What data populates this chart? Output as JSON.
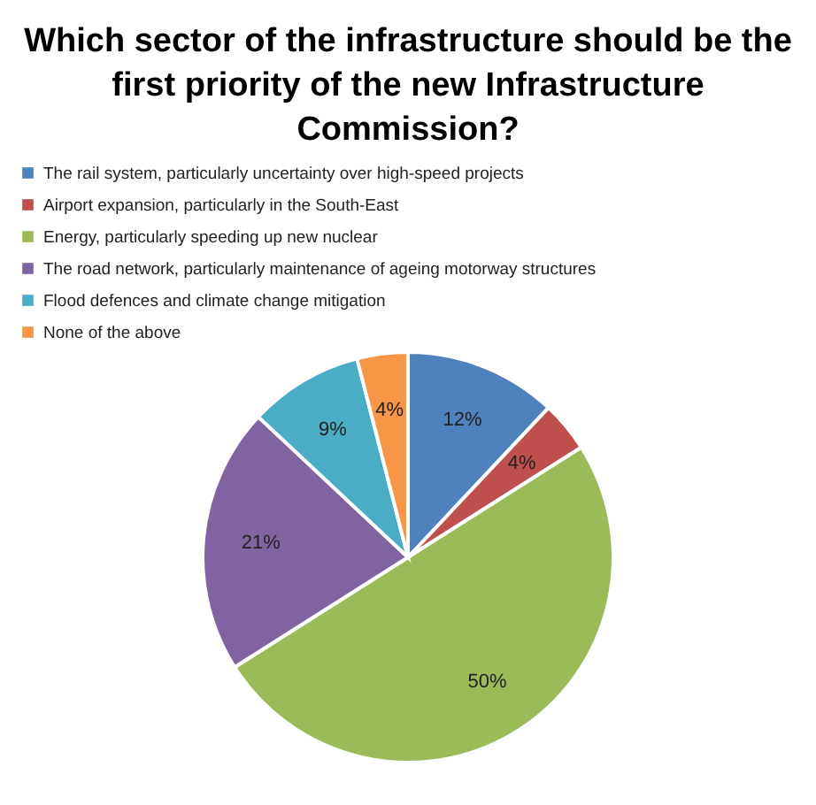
{
  "chart_data": {
    "type": "pie",
    "title": "Which sector of the infrastructure should be the first priority of the new Infrastructure Commission?",
    "categories": [
      "The rail system, particularly uncertainty over high-speed projects",
      "Airport expansion, particularly in the South-East",
      "Energy, particularly speeding up new nuclear",
      "The road network, particularly maintenance of ageing motorway structures",
      "Flood defences and climate change mitigation",
      "None of the above"
    ],
    "values": [
      12,
      4,
      50,
      21,
      9,
      4
    ],
    "colors": [
      "#4f81bd",
      "#c0504d",
      "#9bbb59",
      "#8064a2",
      "#4bacc6",
      "#f79646"
    ],
    "value_labels": [
      "12%",
      "4%",
      "50%",
      "21%",
      "9%",
      "4%"
    ],
    "legend": "top"
  }
}
